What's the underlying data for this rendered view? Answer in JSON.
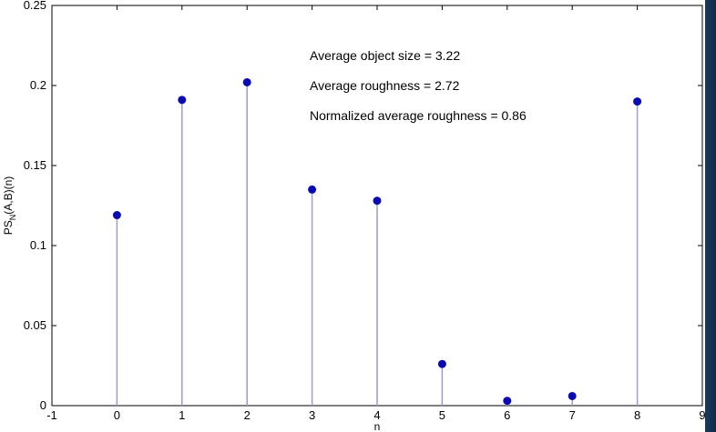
{
  "chart_data": {
    "type": "stem",
    "x": [
      0,
      1,
      2,
      3,
      4,
      5,
      6,
      7,
      8
    ],
    "values": [
      0.119,
      0.191,
      0.202,
      0.135,
      0.128,
      0.026,
      0.003,
      0.006,
      0.19
    ],
    "xlim": [
      -1,
      9
    ],
    "ylim": [
      0,
      0.25
    ],
    "xticks": [
      "-1",
      "0",
      "1",
      "2",
      "3",
      "4",
      "5",
      "6",
      "7",
      "8",
      "9"
    ],
    "yticks": [
      "0",
      "0.05",
      "0.1",
      "0.15",
      "0.2",
      "0.25"
    ],
    "ylabel": "PS_N(A,B)(n)",
    "xlabel": "n",
    "grid": false,
    "annotations": [
      "Average object size = 3.22",
      "Average roughness = 2.72",
      "Normalized average roughness = 0.86"
    ],
    "colors": {
      "marker": "#0a0ab4",
      "stem": "#9c9ccf",
      "axis": "#000000"
    }
  }
}
